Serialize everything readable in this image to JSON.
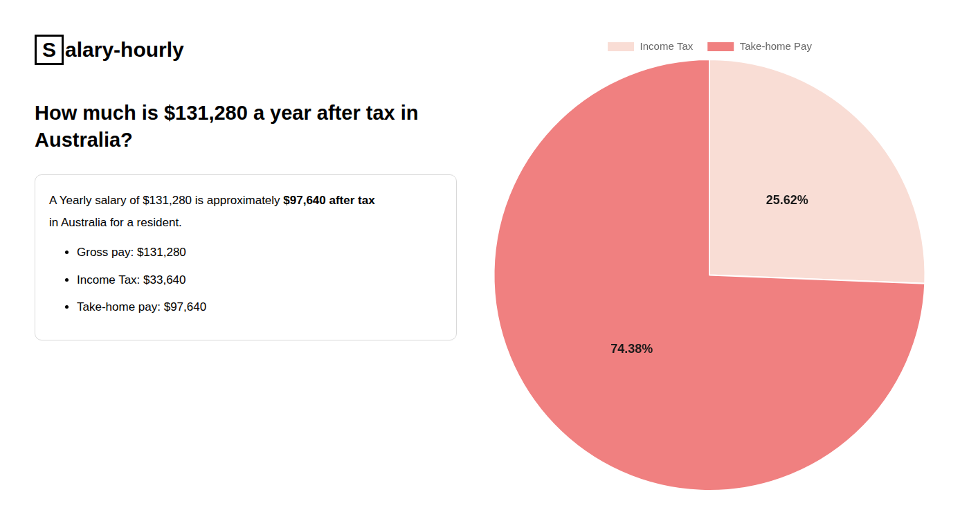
{
  "chart_data": {
    "type": "pie",
    "title": [
      "How much is $131,280 a year after tax in",
      "Australia?"
    ],
    "categories": [
      "Income Tax",
      "Take-home Pay"
    ],
    "values": [
      25.62,
      74.38
    ],
    "value_labels": [
      "25.62%",
      "74.38%"
    ],
    "colors": [
      "#f9ddd5",
      "#f08080"
    ],
    "data_labels": true,
    "legend": "top",
    "annotations": {
      "logo": [
        "S",
        "alary-hourly"
      ],
      "summary": [
        [
          "A Yearly salary of $131,280 is approximately ",
          "$97,640 after tax"
        ],
        [
          "in Australia for a resident."
        ]
      ],
      "bullets": [
        "Gross pay: $131,280",
        "Income Tax: $33,640",
        "Take-home pay: $97,640"
      ]
    }
  }
}
